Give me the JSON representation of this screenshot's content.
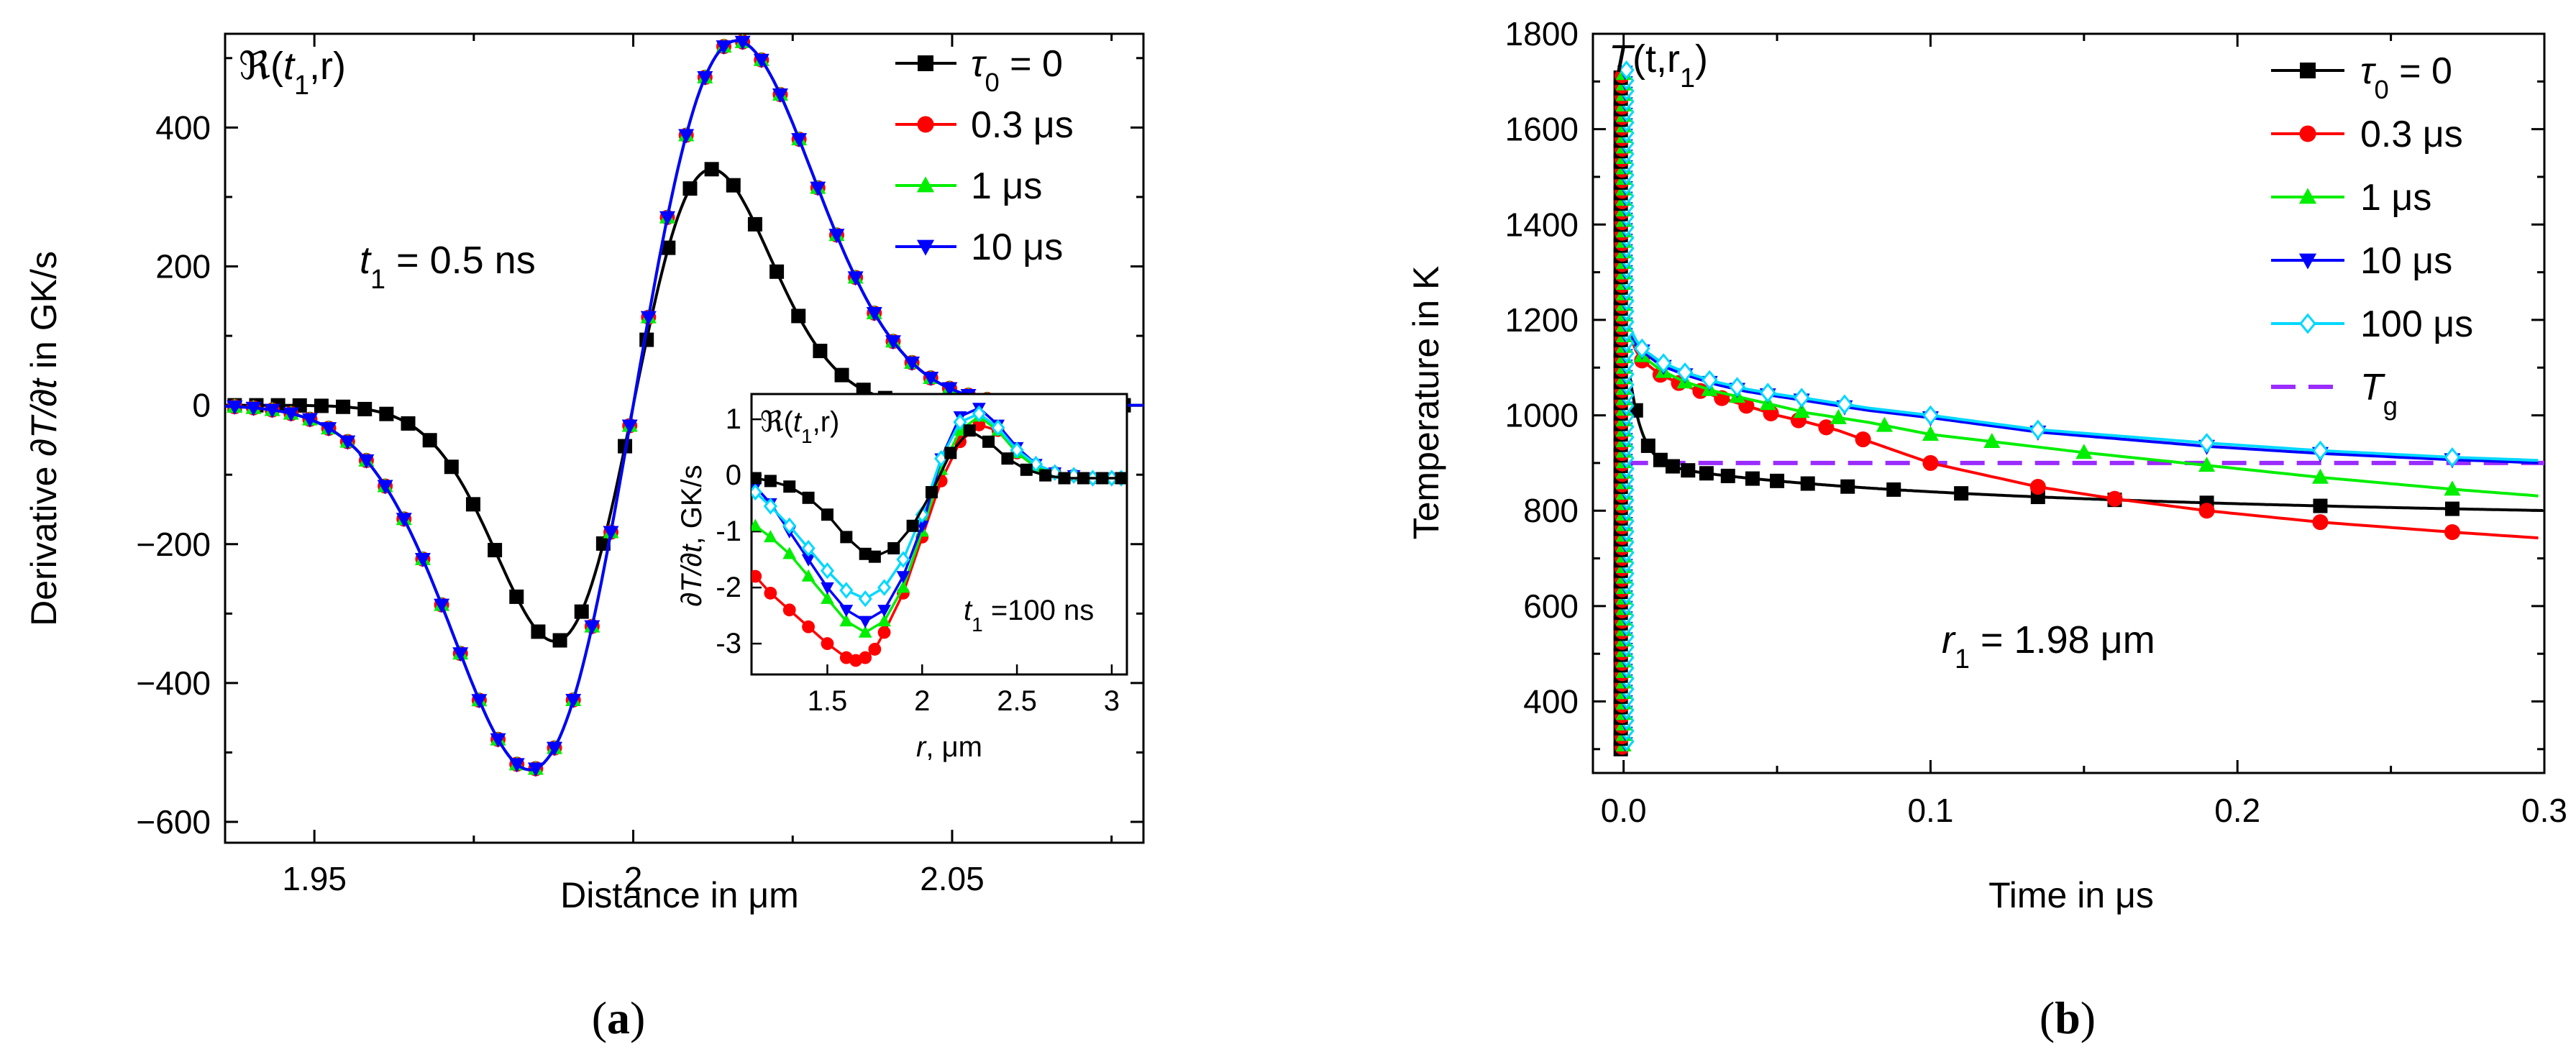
{
  "captions": {
    "a": "a",
    "b": "b"
  },
  "colors": {
    "black": "#000000",
    "red": "#ff0000",
    "green": "#00ee00",
    "blue": "#0000ff",
    "cyan": "#00d8ff",
    "purple": "#9a2cff"
  },
  "chart_data": [
    {
      "id": "a",
      "type": "line",
      "corner_label": {
        "prefix": "ℜ(",
        "t": "t",
        "sub": "1",
        "rest": ",r)"
      },
      "annotation": {
        "t": "t",
        "sub": "1",
        "text": " = 0.5 ns"
      },
      "xlabel": {
        "prefix": "Distance in ",
        "unit": "μm"
      },
      "ylabel": {
        "prefix": "Derivative ",
        "math": "∂T/∂t",
        "suffix": " in GK/s"
      },
      "xlim": [
        1.936,
        2.08
      ],
      "ylim": [
        -630,
        535
      ],
      "xticks": [
        "1.95",
        "2",
        "2.05"
      ],
      "xtick_values": [
        1.95,
        2.0,
        2.05
      ],
      "yticks": [
        "−600",
        "−400",
        "−200",
        "0",
        "200",
        "400"
      ],
      "ytick_values": [
        -600,
        -400,
        -200,
        0,
        200,
        400
      ],
      "legend": [
        {
          "name": "τ",
          "sub": "0",
          "rest": " = 0",
          "color": "#000000",
          "marker": "square"
        },
        {
          "name": "0.3 μs",
          "color": "#ff0000",
          "marker": "circle"
        },
        {
          "name": "1 μs",
          "color": "#00ee00",
          "marker": "triangle-up"
        },
        {
          "name": "10 μs",
          "color": "#0000ff",
          "marker": "triangle-down"
        }
      ],
      "series": [
        {
          "name": "τ0 = 0",
          "color": "#000000",
          "marker": "square",
          "type": "gauss",
          "amp": 340,
          "sigma": 0.0123,
          "x0": 1.9375,
          "dx": 0.0034,
          "n": 42
        },
        {
          "name": "0.3 μs",
          "color": "#ff0000",
          "marker": "circle",
          "type": "gauss",
          "amp": 525,
          "sigma": 0.0162,
          "x0": 1.9375,
          "dx": 0.00295,
          "n": 48
        },
        {
          "name": "1 μs",
          "color": "#00ee00",
          "marker": "triangle-up",
          "type": "gauss",
          "amp": 525,
          "sigma": 0.0162,
          "x0": 1.9375,
          "dx": 0.00295,
          "n": 48
        },
        {
          "name": "10 μs",
          "color": "#0000ff",
          "marker": "triangle-down",
          "type": "gauss",
          "amp": 525,
          "sigma": 0.0162,
          "x0": 1.9375,
          "dx": 0.00295,
          "n": 48
        }
      ],
      "inset": {
        "corner_label": {
          "prefix": "ℜ(",
          "t": "t",
          "sub": "1",
          "rest": ",r)"
        },
        "annotation": {
          "t": "t",
          "sub": "1",
          "text": " =100 ns"
        },
        "xlabel": {
          "r": "r",
          "rest": ", μm"
        },
        "ylabel": {
          "math": "∂T/∂t",
          "rest": ", GK/s"
        },
        "xlim": [
          1.1,
          3.08
        ],
        "ylim": [
          -3.55,
          1.45
        ],
        "xticks": [
          "1.5",
          "2",
          "2.5",
          "3"
        ],
        "xtick_values": [
          1.5,
          2.0,
          2.5,
          3.0
        ],
        "yticks": [
          "-3",
          "-2",
          "-1",
          "0",
          "1"
        ],
        "ytick_values": [
          -3,
          -2,
          -1,
          0,
          1
        ],
        "series": [
          {
            "name": "τ0 = 0",
            "color": "#000000",
            "marker": "square",
            "base": -0.05,
            "pos": [
              1.12,
              1.2,
              1.3,
              1.4,
              1.5,
              1.6,
              1.7,
              1.75,
              1.85,
              1.95,
              2.05,
              2.15,
              2.25,
              2.35,
              2.45,
              2.55,
              2.65,
              2.75,
              2.85,
              2.95,
              3.05
            ],
            "val": [
              -0.05,
              -0.1,
              -0.2,
              -0.4,
              -0.7,
              -1.1,
              -1.4,
              -1.45,
              -1.3,
              -0.9,
              -0.3,
              0.4,
              0.8,
              0.6,
              0.3,
              0.1,
              0.0,
              -0.05,
              -0.05,
              -0.05,
              -0.05
            ]
          },
          {
            "name": "0.3 μs",
            "color": "#ff0000",
            "marker": "circle",
            "pos": [
              1.12,
              1.2,
              1.3,
              1.4,
              1.5,
              1.6,
              1.65,
              1.7,
              1.75,
              1.8,
              1.9,
              2.0,
              2.1,
              2.2,
              2.3,
              2.4,
              2.5,
              2.6,
              2.7,
              2.8,
              2.9,
              3.0,
              3.05
            ],
            "val": [
              -1.8,
              -2.1,
              -2.4,
              -2.7,
              -3.0,
              -3.25,
              -3.3,
              -3.25,
              -3.1,
              -2.8,
              -2.1,
              -1.1,
              -0.1,
              0.6,
              0.9,
              0.8,
              0.4,
              0.15,
              0.05,
              0.0,
              -0.05,
              -0.05,
              -0.05
            ]
          },
          {
            "name": "1 μs",
            "color": "#00ee00",
            "marker": "triangle-up",
            "pos": [
              1.12,
              1.2,
              1.3,
              1.4,
              1.5,
              1.6,
              1.7,
              1.8,
              1.9,
              2.0,
              2.1,
              2.2,
              2.3,
              2.4,
              2.5,
              2.6,
              2.7,
              2.8,
              2.9,
              3.0,
              3.05
            ],
            "val": [
              -0.9,
              -1.1,
              -1.4,
              -1.8,
              -2.2,
              -2.6,
              -2.8,
              -2.6,
              -2.0,
              -1.0,
              0.1,
              0.8,
              1.05,
              0.8,
              0.4,
              0.15,
              0.05,
              0.0,
              -0.05,
              -0.05,
              -0.05
            ]
          },
          {
            "name": "10 μs",
            "color": "#0000ff",
            "marker": "triangle-down",
            "pos": [
              1.12,
              1.2,
              1.3,
              1.4,
              1.5,
              1.6,
              1.7,
              1.8,
              1.9,
              2.0,
              2.1,
              2.2,
              2.3,
              2.4,
              2.5,
              2.6,
              2.7,
              2.8,
              2.9,
              3.0,
              3.05
            ],
            "val": [
              -0.2,
              -0.5,
              -1.0,
              -1.5,
              -2.0,
              -2.4,
              -2.6,
              -2.4,
              -1.8,
              -0.9,
              0.3,
              1.05,
              1.2,
              0.9,
              0.5,
              0.2,
              0.05,
              0.0,
              -0.05,
              -0.05,
              -0.05
            ]
          },
          {
            "name": "100 μs",
            "color": "#00d8ff",
            "marker": "diamond-open",
            "pos": [
              1.12,
              1.2,
              1.3,
              1.4,
              1.5,
              1.6,
              1.7,
              1.8,
              1.9,
              2.0,
              2.1,
              2.2,
              2.3,
              2.4,
              2.5,
              2.6,
              2.7,
              2.8,
              2.9,
              3.0,
              3.05
            ],
            "val": [
              -0.3,
              -0.55,
              -0.9,
              -1.3,
              -1.7,
              -2.05,
              -2.2,
              -2.0,
              -1.5,
              -0.7,
              0.3,
              0.95,
              1.1,
              0.85,
              0.45,
              0.2,
              0.05,
              0.0,
              -0.05,
              -0.05,
              -0.05
            ]
          }
        ]
      }
    },
    {
      "id": "b",
      "type": "line",
      "corner_label": {
        "T": "T",
        "mid": "(t,r",
        "sub": "1",
        "rest": ")"
      },
      "annotation": {
        "r": "r",
        "sub": "1",
        "text": " = 1.98 μm"
      },
      "xlabel": {
        "prefix": "Time in ",
        "unit": "μs"
      },
      "ylabel": {
        "text": "Temperature in K"
      },
      "xlim": [
        -0.01,
        0.3
      ],
      "ylim": [
        250,
        1800
      ],
      "xticks": [
        "0.0",
        "0.1",
        "0.2",
        "0.3"
      ],
      "xtick_values": [
        0.0,
        0.1,
        0.2,
        0.3
      ],
      "yticks": [
        "400",
        "600",
        "800",
        "1000",
        "1200",
        "1400",
        "1600",
        "1800"
      ],
      "ytick_values": [
        400,
        600,
        800,
        1000,
        1200,
        1400,
        1600,
        1800
      ],
      "legend": [
        {
          "name": "τ",
          "sub": "0",
          "rest": " = 0",
          "color": "#000000",
          "marker": "square"
        },
        {
          "name": "0.3 μs",
          "color": "#ff0000",
          "marker": "circle"
        },
        {
          "name": "1 μs",
          "color": "#00ee00",
          "marker": "triangle-up"
        },
        {
          "name": "10 μs",
          "color": "#0000ff",
          "marker": "triangle-down"
        },
        {
          "name": "100 μs",
          "color": "#00d8ff",
          "marker": "diamond-open"
        },
        {
          "name": "T",
          "sub": "g",
          "rest": "",
          "color": "#9a2cff",
          "marker": "dash"
        }
      ],
      "spike": {
        "ymin": 300,
        "ymax": 1710
      },
      "series": [
        {
          "name": "τ0 = 0",
          "color": "#000000",
          "marker": "square",
          "peak": 1200,
          "knee": 900,
          "a": 0.004,
          "end": 715,
          "pts": [
            0.004,
            0.008,
            0.012,
            0.016,
            0.021,
            0.027,
            0.034,
            0.042,
            0.05,
            0.06,
            0.073,
            0.088,
            0.11,
            0.135,
            0.16,
            0.19,
            0.227,
            0.27
          ]
        },
        {
          "name": "0.3 μs",
          "color": "#ff0000",
          "marker": "circle",
          "curve": [
            [
              0.0,
              1200
            ],
            [
              0.005,
              1120
            ],
            [
              0.012,
              1085
            ],
            [
              0.02,
              1062
            ],
            [
              0.03,
              1040
            ],
            [
              0.04,
              1020
            ],
            [
              0.05,
              1000
            ],
            [
              0.06,
              985
            ],
            [
              0.07,
              968
            ],
            [
              0.08,
              945
            ],
            [
              0.1,
              900
            ],
            [
              0.135,
              850
            ],
            [
              0.16,
              825
            ],
            [
              0.19,
              800
            ],
            [
              0.227,
              776
            ],
            [
              0.27,
              755
            ],
            [
              0.3,
              742
            ]
          ],
          "pts": [
            0.006,
            0.012,
            0.018,
            0.025,
            0.032,
            0.04,
            0.048,
            0.057,
            0.066,
            0.078,
            0.1,
            0.135,
            0.16,
            0.19,
            0.227,
            0.27
          ]
        },
        {
          "name": "1 μs",
          "color": "#00ee00",
          "marker": "triangle-up",
          "curve": [
            [
              0.0,
              1200
            ],
            [
              0.005,
              1130
            ],
            [
              0.012,
              1095
            ],
            [
              0.02,
              1070
            ],
            [
              0.03,
              1050
            ],
            [
              0.04,
              1035
            ],
            [
              0.05,
              1020
            ],
            [
              0.06,
              1005
            ],
            [
              0.08,
              985
            ],
            [
              0.1,
              960
            ],
            [
              0.12,
              945
            ],
            [
              0.15,
              922
            ],
            [
              0.19,
              895
            ],
            [
              0.227,
              870
            ],
            [
              0.27,
              845
            ],
            [
              0.3,
              830
            ]
          ],
          "pts": [
            0.006,
            0.013,
            0.02,
            0.028,
            0.037,
            0.047,
            0.058,
            0.07,
            0.085,
            0.1,
            0.12,
            0.15,
            0.19,
            0.227,
            0.27
          ]
        },
        {
          "name": "10 μs",
          "color": "#0000ff",
          "marker": "triangle-down",
          "curve": [
            [
              0.0,
              1200
            ],
            [
              0.005,
              1140
            ],
            [
              0.012,
              1105
            ],
            [
              0.02,
              1085
            ],
            [
              0.03,
              1065
            ],
            [
              0.04,
              1050
            ],
            [
              0.05,
              1040
            ],
            [
              0.06,
              1030
            ],
            [
              0.08,
              1010
            ],
            [
              0.1,
              995
            ],
            [
              0.135,
              965
            ],
            [
              0.19,
              935
            ],
            [
              0.227,
              920
            ],
            [
              0.27,
              907
            ],
            [
              0.3,
              900
            ]
          ],
          "pts": [
            0.006,
            0.013,
            0.02,
            0.028,
            0.037,
            0.047,
            0.058,
            0.072,
            0.1,
            0.135,
            0.19,
            0.227,
            0.27
          ]
        },
        {
          "name": "100 μs",
          "color": "#00d8ff",
          "marker": "diamond-open",
          "curve": [
            [
              0.0,
              1210
            ],
            [
              0.005,
              1145
            ],
            [
              0.012,
              1112
            ],
            [
              0.02,
              1090
            ],
            [
              0.03,
              1070
            ],
            [
              0.04,
              1055
            ],
            [
              0.05,
              1044
            ],
            [
              0.06,
              1035
            ],
            [
              0.08,
              1015
            ],
            [
              0.1,
              1000
            ],
            [
              0.135,
              970
            ],
            [
              0.19,
              942
            ],
            [
              0.227,
              926
            ],
            [
              0.27,
              912
            ],
            [
              0.3,
              905
            ]
          ],
          "pts": [
            0.006,
            0.013,
            0.02,
            0.028,
            0.037,
            0.047,
            0.058,
            0.072,
            0.1,
            0.135,
            0.19,
            0.227,
            0.27
          ]
        },
        {
          "name": "Tg",
          "color": "#9a2cff",
          "marker": "dash",
          "value": 900
        }
      ]
    }
  ]
}
